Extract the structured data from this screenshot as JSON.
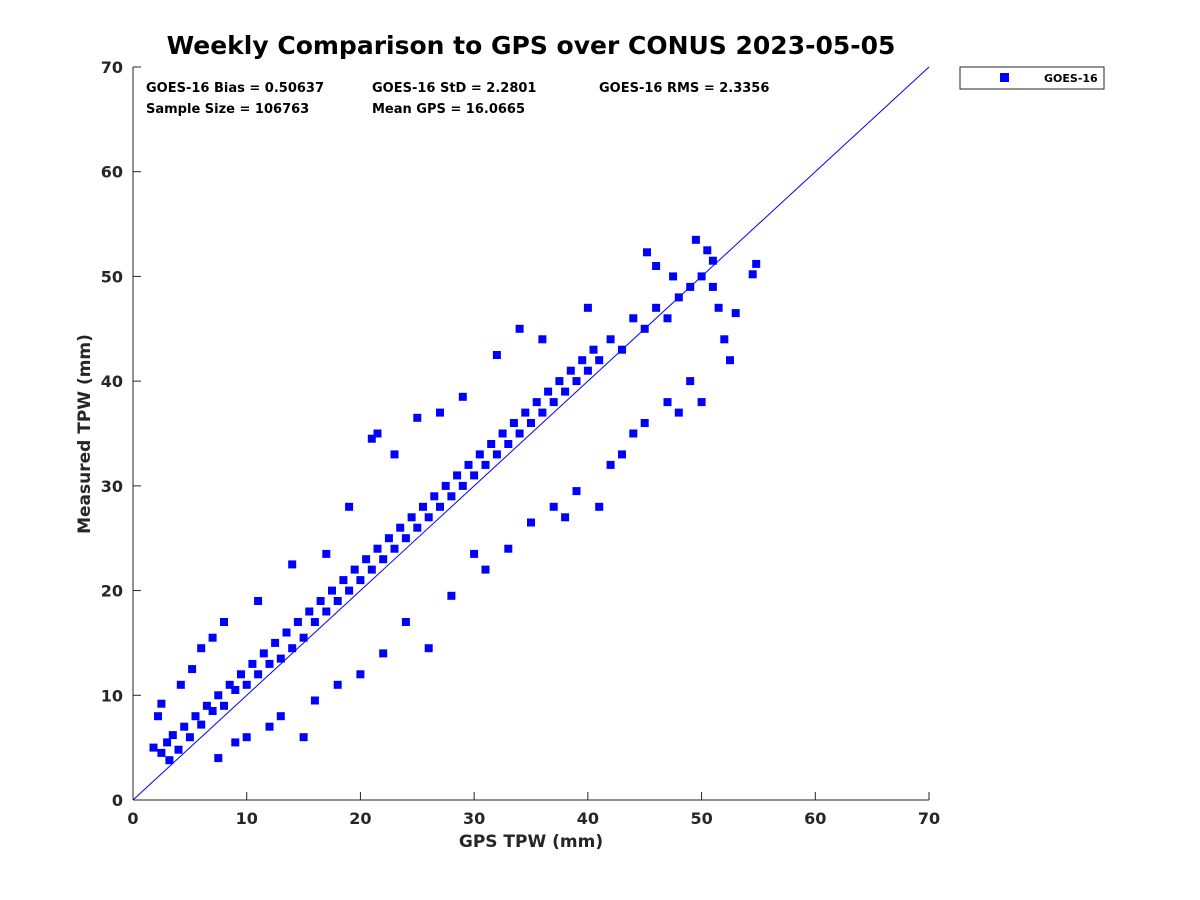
{
  "chart_data": {
    "type": "scatter",
    "title": "Weekly Comparison to GPS over CONUS 2023-05-05",
    "xlabel": "GPS TPW (mm)",
    "ylabel": "Measured TPW (mm)",
    "xlim": [
      0,
      70
    ],
    "ylim": [
      0,
      70
    ],
    "x_ticks": [
      0,
      10,
      20,
      30,
      40,
      50,
      60,
      70
    ],
    "y_ticks": [
      0,
      10,
      20,
      30,
      40,
      50,
      60,
      70
    ],
    "x_tick_labels": [
      "0",
      "10",
      "20",
      "30",
      "40",
      "50",
      "60",
      "70"
    ],
    "y_tick_labels": [
      "0",
      "10",
      "20",
      "30",
      "40",
      "50",
      "60",
      "70"
    ],
    "grid": false,
    "legend_position": "outside-top-right",
    "reference_line": {
      "x": [
        0,
        70
      ],
      "y": [
        0,
        70
      ],
      "color": "#0000ff"
    },
    "stats": {
      "bias": "GOES-16 Bias = 0.50637",
      "std": "GOES-16 StD = 2.2801",
      "rms": "GOES-16 RMS = 2.3356",
      "sample_size": "Sample Size = 106763",
      "mean_gps": "Mean GPS = 16.0665"
    },
    "series": [
      {
        "name": "GOES-16",
        "color": "#0000ff",
        "marker": "square",
        "points": [
          [
            2.5,
            4.5
          ],
          [
            3.0,
            5.5
          ],
          [
            3.5,
            6.2
          ],
          [
            4.0,
            4.8
          ],
          [
            4.5,
            7.0
          ],
          [
            5.0,
            6.0
          ],
          [
            5.5,
            8.0
          ],
          [
            6.0,
            7.2
          ],
          [
            6.5,
            9.0
          ],
          [
            7.0,
            8.5
          ],
          [
            7.5,
            10.0
          ],
          [
            8.0,
            9.0
          ],
          [
            8.5,
            11.0
          ],
          [
            9.0,
            10.5
          ],
          [
            9.5,
            12.0
          ],
          [
            10.0,
            11.0
          ],
          [
            10.5,
            13.0
          ],
          [
            11.0,
            12.0
          ],
          [
            11.5,
            14.0
          ],
          [
            12.0,
            13.0
          ],
          [
            12.5,
            15.0
          ],
          [
            13.0,
            13.5
          ],
          [
            13.5,
            16.0
          ],
          [
            14.0,
            14.5
          ],
          [
            14.5,
            17.0
          ],
          [
            15.0,
            15.5
          ],
          [
            15.5,
            18.0
          ],
          [
            16.0,
            17.0
          ],
          [
            16.5,
            19.0
          ],
          [
            17.0,
            18.0
          ],
          [
            17.5,
            20.0
          ],
          [
            18.0,
            19.0
          ],
          [
            18.5,
            21.0
          ],
          [
            19.0,
            20.0
          ],
          [
            19.5,
            22.0
          ],
          [
            20.0,
            21.0
          ],
          [
            20.5,
            23.0
          ],
          [
            21.0,
            22.0
          ],
          [
            21.5,
            24.0
          ],
          [
            22.0,
            23.0
          ],
          [
            22.5,
            25.0
          ],
          [
            23.0,
            24.0
          ],
          [
            23.5,
            26.0
          ],
          [
            24.0,
            25.0
          ],
          [
            24.5,
            27.0
          ],
          [
            25.0,
            26.0
          ],
          [
            25.5,
            28.0
          ],
          [
            26.0,
            27.0
          ],
          [
            26.5,
            29.0
          ],
          [
            27.0,
            28.0
          ],
          [
            27.5,
            30.0
          ],
          [
            28.0,
            29.0
          ],
          [
            28.5,
            31.0
          ],
          [
            29.0,
            30.0
          ],
          [
            29.5,
            32.0
          ],
          [
            30.0,
            31.0
          ],
          [
            30.5,
            33.0
          ],
          [
            31.0,
            32.0
          ],
          [
            31.5,
            34.0
          ],
          [
            32.0,
            33.0
          ],
          [
            32.5,
            35.0
          ],
          [
            33.0,
            34.0
          ],
          [
            33.5,
            36.0
          ],
          [
            34.0,
            35.0
          ],
          [
            34.5,
            37.0
          ],
          [
            35.0,
            36.0
          ],
          [
            35.5,
            38.0
          ],
          [
            36.0,
            37.0
          ],
          [
            36.5,
            39.0
          ],
          [
            37.0,
            38.0
          ],
          [
            37.5,
            40.0
          ],
          [
            38.0,
            39.0
          ],
          [
            38.5,
            41.0
          ],
          [
            39.0,
            40.0
          ],
          [
            39.5,
            42.0
          ],
          [
            40.0,
            41.0
          ],
          [
            40.5,
            43.0
          ],
          [
            41.0,
            42.0
          ],
          [
            42.0,
            44.0
          ],
          [
            43.0,
            43.0
          ],
          [
            44.0,
            46.0
          ],
          [
            45.0,
            45.0
          ],
          [
            46.0,
            47.0
          ],
          [
            47.0,
            46.0
          ],
          [
            48.0,
            48.0
          ],
          [
            49.0,
            49.0
          ],
          [
            50.0,
            50.0
          ],
          [
            51.0,
            49.0
          ],
          [
            1.8,
            5.0
          ],
          [
            2.2,
            8.0
          ],
          [
            2.5,
            9.2
          ],
          [
            3.2,
            3.8
          ],
          [
            4.2,
            11.0
          ],
          [
            5.2,
            12.5
          ],
          [
            6.0,
            14.5
          ],
          [
            7.0,
            15.5
          ],
          [
            7.5,
            4.0
          ],
          [
            8.0,
            17.0
          ],
          [
            9.0,
            5.5
          ],
          [
            10.0,
            6.0
          ],
          [
            11.0,
            19.0
          ],
          [
            12.0,
            7.0
          ],
          [
            13.0,
            8.0
          ],
          [
            14.0,
            22.5
          ],
          [
            15.0,
            6.0
          ],
          [
            16.0,
            9.5
          ],
          [
            17.0,
            23.5
          ],
          [
            18.0,
            11.0
          ],
          [
            19.0,
            28.0
          ],
          [
            20.0,
            12.0
          ],
          [
            21.0,
            34.5
          ],
          [
            21.5,
            35.0
          ],
          [
            22.0,
            14.0
          ],
          [
            23.0,
            33.0
          ],
          [
            24.0,
            17.0
          ],
          [
            25.0,
            36.5
          ],
          [
            26.0,
            14.5
          ],
          [
            27.0,
            37.0
          ],
          [
            28.0,
            19.5
          ],
          [
            29.0,
            38.5
          ],
          [
            30.0,
            23.5
          ],
          [
            31.0,
            22.0
          ],
          [
            32.0,
            42.5
          ],
          [
            33.0,
            24.0
          ],
          [
            34.0,
            45.0
          ],
          [
            35.0,
            26.5
          ],
          [
            36.0,
            44.0
          ],
          [
            37.0,
            28.0
          ],
          [
            38.0,
            27.0
          ],
          [
            39.0,
            29.5
          ],
          [
            40.0,
            47.0
          ],
          [
            41.0,
            28.0
          ],
          [
            42.0,
            32.0
          ],
          [
            43.0,
            33.0
          ],
          [
            44.0,
            35.0
          ],
          [
            45.0,
            36.0
          ],
          [
            45.2,
            52.3
          ],
          [
            46.0,
            51.0
          ],
          [
            47.0,
            38.0
          ],
          [
            48.0,
            37.0
          ],
          [
            49.0,
            40.0
          ],
          [
            50.0,
            38.0
          ],
          [
            50.5,
            52.5
          ],
          [
            51.0,
            51.5
          ],
          [
            52.0,
            44.0
          ],
          [
            52.5,
            42.0
          ],
          [
            53.0,
            46.5
          ],
          [
            54.5,
            50.2
          ],
          [
            54.8,
            51.2
          ],
          [
            51.5,
            47.0
          ],
          [
            49.5,
            53.5
          ],
          [
            47.5,
            50.0
          ]
        ]
      }
    ]
  }
}
